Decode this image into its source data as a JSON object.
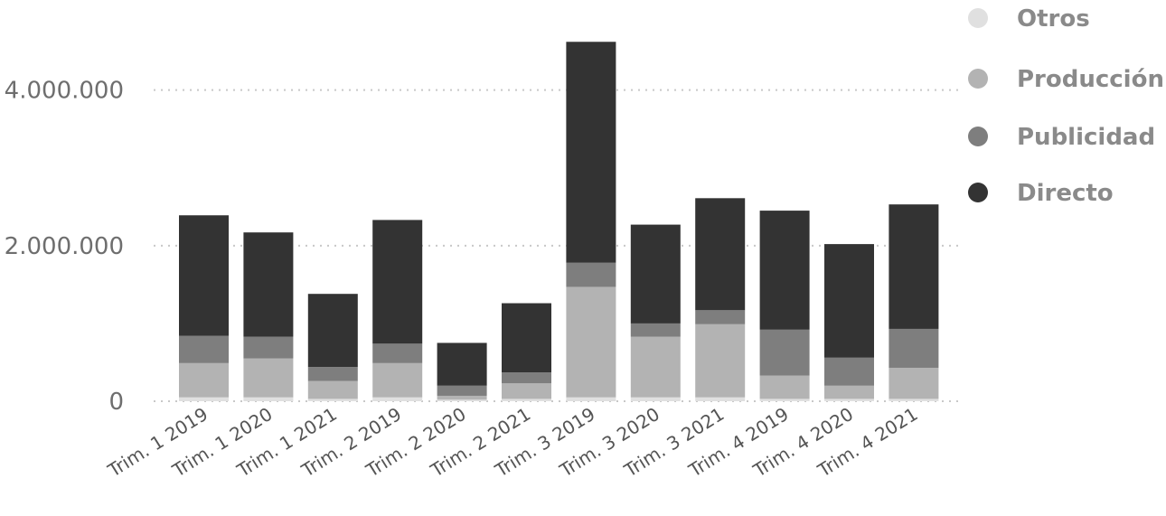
{
  "chart_data": {
    "type": "bar",
    "stacked": true,
    "categories": [
      "Trim. 1 2019",
      "Trim. 1 2020",
      "Trim. 1 2021",
      "Trim. 2 2019",
      "Trim. 2 2020",
      "Trim. 2 2021",
      "Trim. 3 2019",
      "Trim. 3 2020",
      "Trim. 3 2021",
      "Trim. 4 2019",
      "Trim. 4 2020",
      "Trim. 4 2021"
    ],
    "series": [
      {
        "name": "Otros",
        "color": "#e0e0e0",
        "values": [
          50000,
          50000,
          30000,
          50000,
          20000,
          30000,
          50000,
          50000,
          50000,
          30000,
          30000,
          30000
        ]
      },
      {
        "name": "Producción",
        "color": "#b3b3b3",
        "values": [
          440000,
          500000,
          230000,
          440000,
          50000,
          200000,
          1420000,
          780000,
          940000,
          300000,
          170000,
          400000
        ]
      },
      {
        "name": "Publicidad",
        "color": "#7e7e7e",
        "values": [
          350000,
          280000,
          180000,
          250000,
          130000,
          140000,
          310000,
          170000,
          180000,
          590000,
          360000,
          500000
        ]
      },
      {
        "name": "Directo",
        "color": "#333333",
        "values": [
          1550000,
          1340000,
          940000,
          1590000,
          550000,
          890000,
          2840000,
          1270000,
          1440000,
          1530000,
          1460000,
          1600000
        ]
      }
    ],
    "y_ticks": [
      {
        "value": 0,
        "label": "0"
      },
      {
        "value": 2000000,
        "label": "2.000.000"
      },
      {
        "value": 4000000,
        "label": "4.000.000"
      }
    ],
    "ylim": [
      0,
      4600000
    ],
    "grid": true,
    "legend_position": "top-right",
    "title": "",
    "xlabel": "",
    "ylabel": ""
  },
  "legend": [
    {
      "label": "Otros",
      "color": "#e0e0e0"
    },
    {
      "label": "Producción",
      "color": "#b3b3b3"
    },
    {
      "label": "Publicidad",
      "color": "#7e7e7e"
    },
    {
      "label": "Directo",
      "color": "#333333"
    }
  ]
}
